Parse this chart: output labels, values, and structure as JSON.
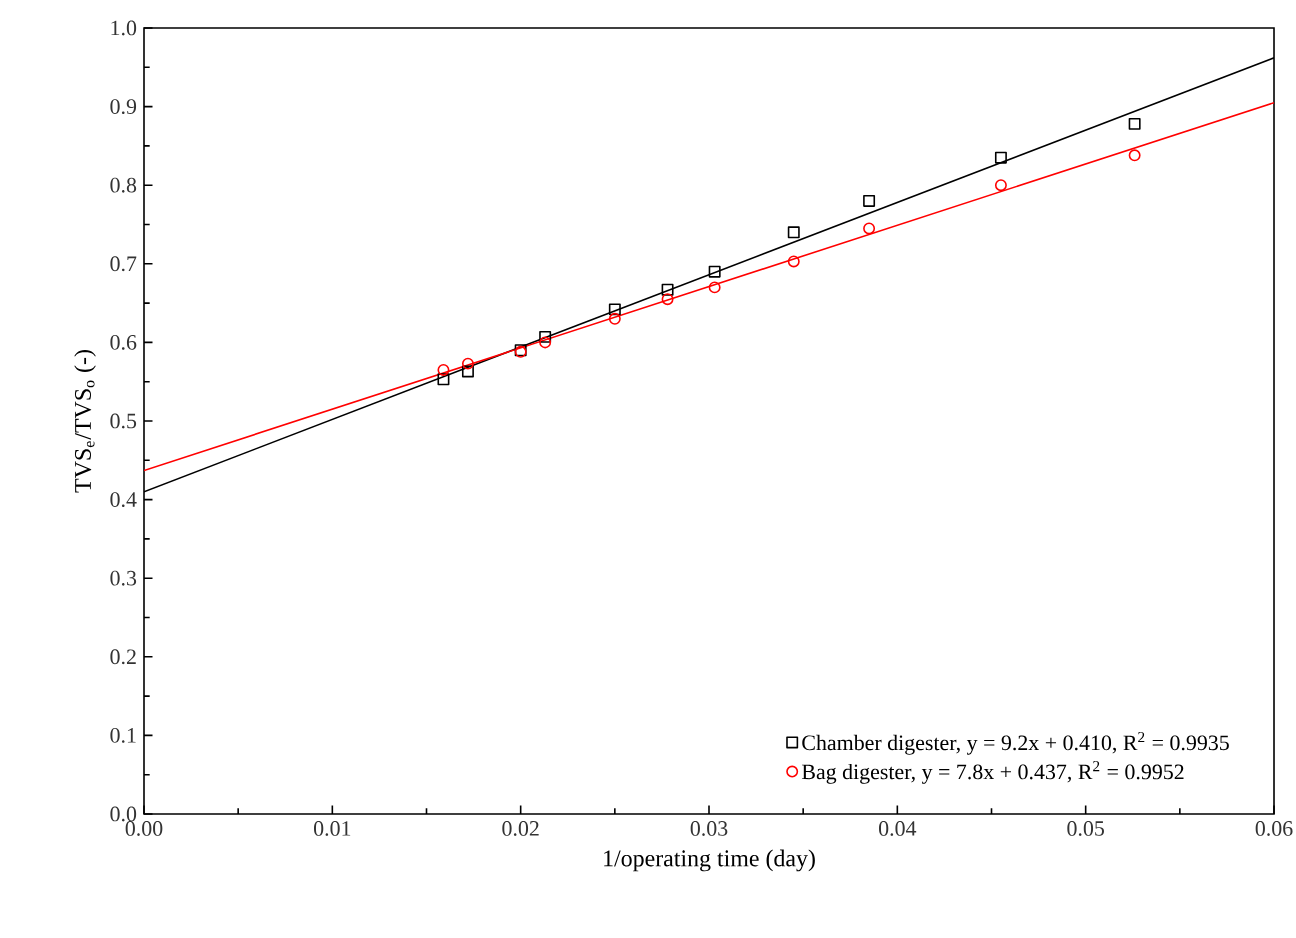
{
  "chart_data": {
    "type": "scatter",
    "xlabel": "1/operating time (day)",
    "ylabel": "TVS$_{e}$/TVS$_{o}$ (-)",
    "xlim": [
      0,
      0.06
    ],
    "ylim": [
      0,
      1.0
    ],
    "xticks": [
      {
        "value": 0,
        "label": "0.00"
      },
      {
        "value": 0.01,
        "label": "0.01"
      },
      {
        "value": 0.02,
        "label": "0.02"
      },
      {
        "value": 0.03,
        "label": "0.03"
      },
      {
        "value": 0.04,
        "label": "0.04"
      },
      {
        "value": 0.05,
        "label": "0.05"
      },
      {
        "value": 0.06,
        "label": "0.06"
      }
    ],
    "yticks": [
      {
        "value": 0,
        "label": "0.0"
      },
      {
        "value": 0.1,
        "label": "0.1"
      },
      {
        "value": 0.2,
        "label": "0.2"
      },
      {
        "value": 0.3,
        "label": "0.3"
      },
      {
        "value": 0.4,
        "label": "0.4"
      },
      {
        "value": 0.5,
        "label": "0.5"
      },
      {
        "value": 0.6,
        "label": "0.6"
      },
      {
        "value": 0.7,
        "label": "0.7"
      },
      {
        "value": 0.8,
        "label": "0.8"
      },
      {
        "value": 0.9,
        "label": "0.9"
      },
      {
        "value": 1.0,
        "label": "1.0"
      }
    ],
    "legend": "bottom right",
    "grid": false,
    "series": [
      {
        "name": "Chamber digester, y = 9.2x + 0.410, R$^{2}$ = 0.9935",
        "marker": "square",
        "color": "#000000",
        "x": [
          0.0159,
          0.0172,
          0.02,
          0.0213,
          0.025,
          0.0278,
          0.0303,
          0.0345,
          0.0385,
          0.0455,
          0.0526
        ],
        "values": [
          0.553,
          0.563,
          0.59,
          0.607,
          0.642,
          0.667,
          0.69,
          0.74,
          0.78,
          0.835,
          0.878
        ]
      },
      {
        "name": "Bag digester, y = 7.8x + 0.437, R$^{2}$ = 0.9952",
        "marker": "circle",
        "color": "#ff0000",
        "x": [
          0.0159,
          0.0172,
          0.02,
          0.0213,
          0.025,
          0.0278,
          0.0303,
          0.0345,
          0.0385,
          0.0455,
          0.0526
        ],
        "values": [
          0.565,
          0.573,
          0.588,
          0.6,
          0.63,
          0.655,
          0.67,
          0.703,
          0.745,
          0.8,
          0.838
        ]
      },
      {
        "type": "line",
        "marker": "none",
        "line_style": "solid",
        "color": "#000000",
        "x": [
          0,
          0.06
        ],
        "values": [
          0.41,
          0.962
        ]
      },
      {
        "type": "line",
        "marker": "none",
        "line_style": "solid",
        "color": "#ff0000",
        "x": [
          0,
          0.06
        ],
        "values": [
          0.437,
          0.905
        ]
      }
    ]
  }
}
